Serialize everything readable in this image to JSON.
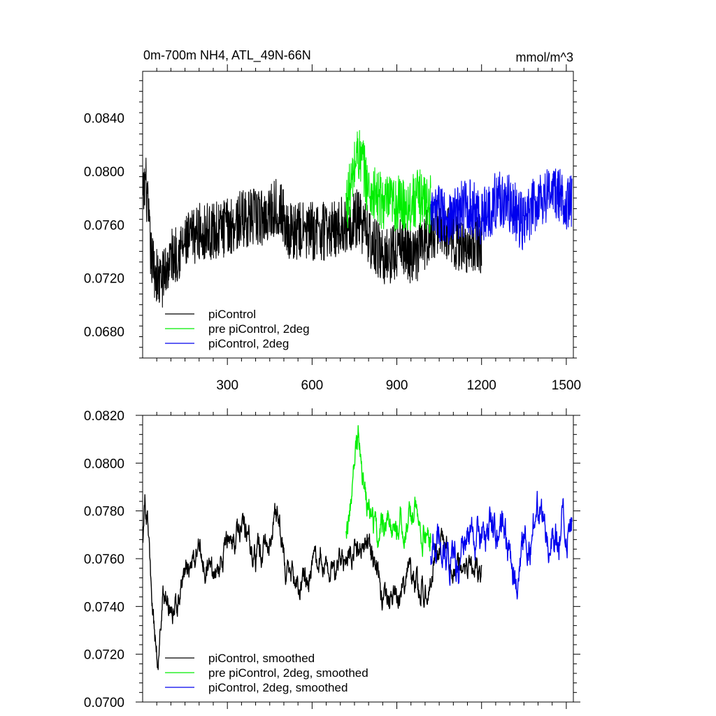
{
  "chart_data": [
    {
      "type": "line",
      "title": "0m-700m NH4, ATL_49N-66N",
      "units": "mmol/m^3",
      "xlim": [
        0,
        1525
      ],
      "ylim": [
        0.066,
        0.0875
      ],
      "yticks": [
        0.068,
        0.072,
        0.076,
        0.08,
        0.084
      ],
      "ytick_labels": [
        "0.0680",
        "0.0720",
        "0.0760",
        "0.0800",
        "0.0840"
      ],
      "xticks": [
        300,
        600,
        900,
        1200,
        1500
      ],
      "xtick_labels": [
        "300",
        "600",
        "900",
        "1200",
        "1500"
      ],
      "legend_position": "bottom-left",
      "series": [
        {
          "name": "piControl",
          "color": "#000000",
          "x_start": 1,
          "x_end": 1200,
          "mean": 0.0755,
          "amplitude": 0.0022,
          "anchors": [
            [
              1,
              0.0775
            ],
            [
              10,
              0.0795
            ],
            [
              30,
              0.0735
            ],
            [
              60,
              0.0715
            ],
            [
              100,
              0.0735
            ],
            [
              150,
              0.0745
            ],
            [
              200,
              0.0755
            ],
            [
              260,
              0.0755
            ],
            [
              300,
              0.0758
            ],
            [
              360,
              0.0765
            ],
            [
              420,
              0.0765
            ],
            [
              480,
              0.0775
            ],
            [
              520,
              0.0755
            ],
            [
              600,
              0.0755
            ],
            [
              660,
              0.0755
            ],
            [
              720,
              0.076
            ],
            [
              760,
              0.0765
            ],
            [
              820,
              0.0745
            ],
            [
              860,
              0.0735
            ],
            [
              920,
              0.0745
            ],
            [
              960,
              0.0735
            ],
            [
              1020,
              0.0755
            ],
            [
              1060,
              0.076
            ],
            [
              1120,
              0.0745
            ],
            [
              1200,
              0.0745
            ]
          ]
        },
        {
          "name": "pre piControl, 2deg",
          "color": "#00ee00",
          "x_start": 720,
          "x_end": 1020,
          "mean": 0.078,
          "amplitude": 0.0022,
          "anchors": [
            [
              720,
              0.0775
            ],
            [
              740,
              0.079
            ],
            [
              760,
              0.0815
            ],
            [
              780,
              0.0805
            ],
            [
              800,
              0.0785
            ],
            [
              830,
              0.078
            ],
            [
              860,
              0.0775
            ],
            [
              900,
              0.0775
            ],
            [
              940,
              0.0775
            ],
            [
              980,
              0.078
            ],
            [
              1020,
              0.0775
            ]
          ]
        },
        {
          "name": "piControl, 2deg",
          "color": "#0000ee",
          "x_start": 1020,
          "x_end": 1520,
          "mean": 0.0775,
          "amplitude": 0.0022,
          "anchors": [
            [
              1020,
              0.0765
            ],
            [
              1060,
              0.077
            ],
            [
              1100,
              0.0765
            ],
            [
              1150,
              0.0775
            ],
            [
              1200,
              0.0765
            ],
            [
              1260,
              0.078
            ],
            [
              1300,
              0.0775
            ],
            [
              1350,
              0.076
            ],
            [
              1400,
              0.078
            ],
            [
              1450,
              0.0785
            ],
            [
              1520,
              0.0775
            ]
          ]
        }
      ]
    },
    {
      "type": "line",
      "title": "",
      "xlim": [
        0,
        1525
      ],
      "ylim": [
        0.07,
        0.082
      ],
      "yticks": [
        0.07,
        0.072,
        0.074,
        0.076,
        0.078,
        0.08,
        0.082
      ],
      "ytick_labels": [
        "0.0700",
        "0.0720",
        "0.0740",
        "0.0760",
        "0.0780",
        "0.0800",
        "0.0820"
      ],
      "xticks": [
        300,
        600,
        900,
        1200,
        1500
      ],
      "legend_position": "bottom-left",
      "series": [
        {
          "name": "piControl, smoothed",
          "color": "#000000",
          "x_start": 1,
          "x_end": 1200,
          "mean": 0.0755,
          "amplitude": 0.0008,
          "anchors": [
            [
              1,
              0.077
            ],
            [
              8,
              0.0785
            ],
            [
              20,
              0.077
            ],
            [
              35,
              0.0735
            ],
            [
              55,
              0.0715
            ],
            [
              70,
              0.0745
            ],
            [
              90,
              0.0745
            ],
            [
              110,
              0.0735
            ],
            [
              140,
              0.0755
            ],
            [
              170,
              0.0755
            ],
            [
              200,
              0.0765
            ],
            [
              230,
              0.0755
            ],
            [
              260,
              0.0755
            ],
            [
              290,
              0.0765
            ],
            [
              330,
              0.0765
            ],
            [
              360,
              0.0775
            ],
            [
              400,
              0.076
            ],
            [
              430,
              0.0765
            ],
            [
              480,
              0.078
            ],
            [
              510,
              0.0755
            ],
            [
              560,
              0.075
            ],
            [
              600,
              0.0755
            ],
            [
              640,
              0.0765
            ],
            [
              680,
              0.0755
            ],
            [
              720,
              0.076
            ],
            [
              760,
              0.0765
            ],
            [
              820,
              0.076
            ],
            [
              850,
              0.0745
            ],
            [
              900,
              0.0745
            ],
            [
              940,
              0.0755
            ],
            [
              980,
              0.0745
            ],
            [
              1020,
              0.0755
            ],
            [
              1060,
              0.0765
            ],
            [
              1100,
              0.076
            ],
            [
              1140,
              0.0755
            ],
            [
              1200,
              0.0755
            ]
          ]
        },
        {
          "name": "pre piControl, 2deg, smoothed",
          "color": "#00ee00",
          "x_start": 720,
          "x_end": 1020,
          "mean": 0.0775,
          "amplitude": 0.0009,
          "anchors": [
            [
              720,
              0.0775
            ],
            [
              740,
              0.0785
            ],
            [
              765,
              0.0815
            ],
            [
              790,
              0.0785
            ],
            [
              820,
              0.077
            ],
            [
              850,
              0.0775
            ],
            [
              890,
              0.0775
            ],
            [
              930,
              0.0775
            ],
            [
              970,
              0.078
            ],
            [
              1000,
              0.077
            ],
            [
              1020,
              0.0765
            ]
          ]
        },
        {
          "name": "piControl, 2deg, smoothed",
          "color": "#0000ee",
          "x_start": 1020,
          "x_end": 1520,
          "mean": 0.0765,
          "amplitude": 0.0011,
          "anchors": [
            [
              1020,
              0.0765
            ],
            [
              1060,
              0.0765
            ],
            [
              1110,
              0.0755
            ],
            [
              1150,
              0.077
            ],
            [
              1180,
              0.0765
            ],
            [
              1230,
              0.0775
            ],
            [
              1270,
              0.0775
            ],
            [
              1320,
              0.0755
            ],
            [
              1360,
              0.0765
            ],
            [
              1400,
              0.0775
            ],
            [
              1450,
              0.077
            ],
            [
              1520,
              0.0775
            ]
          ]
        }
      ]
    }
  ]
}
